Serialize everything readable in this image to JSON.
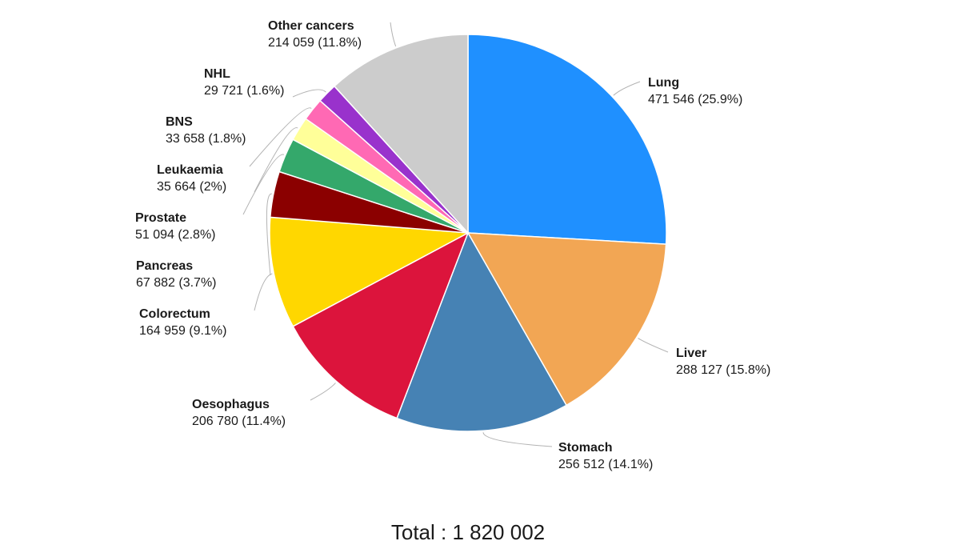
{
  "chart_data": {
    "type": "pie",
    "total_text": "Total : 1 820 002",
    "slices": [
      {
        "name": "Lung",
        "value": 471546,
        "value_text": "471 546",
        "percent": 25.9,
        "percent_text": "(25.9%)",
        "color": "#1f90ff"
      },
      {
        "name": "Liver",
        "value": 288127,
        "value_text": "288 127",
        "percent": 15.8,
        "percent_text": "(15.8%)",
        "color": "#f2a654"
      },
      {
        "name": "Stomach",
        "value": 256512,
        "value_text": "256 512",
        "percent": 14.1,
        "percent_text": "(14.1%)",
        "color": "#4682b4"
      },
      {
        "name": "Oesophagus",
        "value": 206780,
        "value_text": "206 780",
        "percent": 11.4,
        "percent_text": "(11.4%)",
        "color": "#dc143c"
      },
      {
        "name": "Colorectum",
        "value": 164959,
        "value_text": "164 959",
        "percent": 9.1,
        "percent_text": "(9.1%)",
        "color": "#ffd700"
      },
      {
        "name": "Pancreas",
        "value": 67882,
        "value_text": "67 882",
        "percent": 3.7,
        "percent_text": "(3.7%)",
        "color": "#8b0000"
      },
      {
        "name": "Prostate",
        "value": 51094,
        "value_text": "51 094",
        "percent": 2.8,
        "percent_text": "(2.8%)",
        "color": "#34a86b"
      },
      {
        "name": "Leukaemia",
        "value": 35664,
        "value_text": "35 664",
        "percent": 2,
        "percent_text": "(2%)",
        "color": "#ffff99"
      },
      {
        "name": "BNS",
        "value": 33658,
        "value_text": "33 658",
        "percent": 1.8,
        "percent_text": "(1.8%)",
        "color": "#ff69b4"
      },
      {
        "name": "NHL",
        "value": 29721,
        "value_text": "29 721",
        "percent": 1.6,
        "percent_text": "(1.6%)",
        "color": "#9932cc"
      },
      {
        "name": "Other cancers",
        "value": 214059,
        "value_text": "214 059",
        "percent": 11.8,
        "percent_text": "(11.8%)",
        "color": "#cccccc"
      }
    ]
  }
}
